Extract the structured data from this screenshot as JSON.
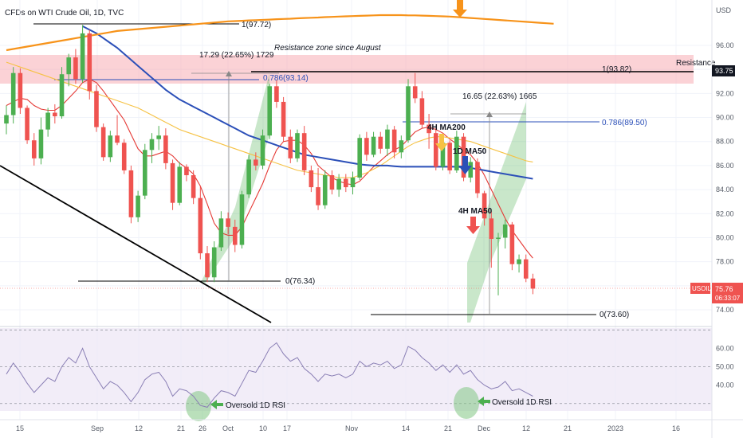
{
  "header": {
    "title": "CFDs on WTI Crude Oil, 1D, TVC"
  },
  "price_axis": {
    "unit": "USD",
    "ticks": [
      "96.00",
      "94.00",
      "92.00",
      "90.00",
      "88.00",
      "86.00",
      "84.00",
      "82.00",
      "80.00",
      "78.00",
      "76.00",
      "74.00"
    ]
  },
  "rsi_axis": {
    "ticks": [
      "60.00",
      "50.00",
      "40.00"
    ]
  },
  "time_axis": {
    "ticks": [
      "15",
      "Sep",
      "12",
      "21",
      "26",
      "Oct",
      "10",
      "17",
      "Nov",
      "14",
      "21",
      "Dec",
      "12",
      "21",
      "2023",
      "16"
    ]
  },
  "badges": {
    "resistance_price": "93.75",
    "symbol": "USOIL",
    "last_price": "75.76",
    "countdown": "06:33:07"
  },
  "colors": {
    "up": "#4caf50",
    "down": "#ef5350",
    "ma_fast": "#e53935",
    "ma_mid": "#f6c244",
    "ma_slow": "#2b4fb8",
    "ma_long": "#f7931a",
    "rsi": "#8a7fb5"
  },
  "chart_data": {
    "type": "candlestick",
    "symbol": "USOIL",
    "timeframe": "1D",
    "ylim": [
      73.0,
      98.5
    ],
    "candles": [
      {
        "o": 89.5,
        "h": 91.0,
        "l": 88.6,
        "c": 90.2
      },
      {
        "o": 90.2,
        "h": 94.2,
        "l": 89.5,
        "c": 93.7
      },
      {
        "o": 93.7,
        "h": 94.1,
        "l": 90.3,
        "c": 90.8
      },
      {
        "o": 90.8,
        "h": 91.0,
        "l": 87.8,
        "c": 88.1
      },
      {
        "o": 88.1,
        "h": 88.7,
        "l": 86.0,
        "c": 86.6
      },
      {
        "o": 86.6,
        "h": 90.0,
        "l": 86.1,
        "c": 89.0
      },
      {
        "o": 89.0,
        "h": 90.8,
        "l": 88.4,
        "c": 90.4
      },
      {
        "o": 90.4,
        "h": 91.1,
        "l": 89.5,
        "c": 90.1
      },
      {
        "o": 90.1,
        "h": 94.2,
        "l": 89.9,
        "c": 93.6
      },
      {
        "o": 93.6,
        "h": 95.3,
        "l": 92.6,
        "c": 95.0
      },
      {
        "o": 95.0,
        "h": 95.7,
        "l": 92.8,
        "c": 93.2
      },
      {
        "o": 93.2,
        "h": 97.7,
        "l": 92.9,
        "c": 97.0
      },
      {
        "o": 97.0,
        "h": 97.3,
        "l": 91.5,
        "c": 92.2
      },
      {
        "o": 92.2,
        "h": 92.7,
        "l": 88.8,
        "c": 89.2
      },
      {
        "o": 89.2,
        "h": 89.5,
        "l": 86.4,
        "c": 86.7
      },
      {
        "o": 86.7,
        "h": 88.9,
        "l": 86.3,
        "c": 88.5
      },
      {
        "o": 88.5,
        "h": 90.2,
        "l": 87.7,
        "c": 87.9
      },
      {
        "o": 87.9,
        "h": 88.2,
        "l": 85.3,
        "c": 85.6
      },
      {
        "o": 85.6,
        "h": 86.0,
        "l": 81.2,
        "c": 81.7
      },
      {
        "o": 81.7,
        "h": 83.9,
        "l": 81.3,
        "c": 83.5
      },
      {
        "o": 83.5,
        "h": 87.8,
        "l": 83.2,
        "c": 87.3
      },
      {
        "o": 87.3,
        "h": 88.7,
        "l": 86.2,
        "c": 88.2
      },
      {
        "o": 88.2,
        "h": 89.3,
        "l": 87.3,
        "c": 88.5
      },
      {
        "o": 88.5,
        "h": 89.1,
        "l": 85.7,
        "c": 86.2
      },
      {
        "o": 86.2,
        "h": 86.5,
        "l": 82.3,
        "c": 82.9
      },
      {
        "o": 82.9,
        "h": 86.3,
        "l": 82.7,
        "c": 85.9
      },
      {
        "o": 85.9,
        "h": 86.1,
        "l": 84.7,
        "c": 85.2
      },
      {
        "o": 85.2,
        "h": 85.6,
        "l": 82.8,
        "c": 83.3
      },
      {
        "o": 83.3,
        "h": 84.3,
        "l": 78.2,
        "c": 78.7
      },
      {
        "o": 78.7,
        "h": 79.3,
        "l": 76.3,
        "c": 76.7
      },
      {
        "o": 76.7,
        "h": 79.7,
        "l": 76.3,
        "c": 79.2
      },
      {
        "o": 79.2,
        "h": 82.2,
        "l": 78.9,
        "c": 81.6
      },
      {
        "o": 81.6,
        "h": 82.1,
        "l": 80.3,
        "c": 80.9
      },
      {
        "o": 80.9,
        "h": 81.5,
        "l": 78.8,
        "c": 79.4
      },
      {
        "o": 79.4,
        "h": 83.9,
        "l": 79.1,
        "c": 83.6
      },
      {
        "o": 83.6,
        "h": 86.9,
        "l": 83.3,
        "c": 86.5
      },
      {
        "o": 86.5,
        "h": 87.1,
        "l": 85.6,
        "c": 86.0
      },
      {
        "o": 86.0,
        "h": 89.0,
        "l": 85.7,
        "c": 88.5
      },
      {
        "o": 88.5,
        "h": 92.8,
        "l": 88.2,
        "c": 92.6
      },
      {
        "o": 92.6,
        "h": 93.1,
        "l": 90.8,
        "c": 91.3
      },
      {
        "o": 91.3,
        "h": 91.7,
        "l": 88.0,
        "c": 88.4
      },
      {
        "o": 88.4,
        "h": 89.0,
        "l": 86.2,
        "c": 86.6
      },
      {
        "o": 86.6,
        "h": 89.0,
        "l": 86.3,
        "c": 88.7
      },
      {
        "o": 88.7,
        "h": 89.3,
        "l": 85.2,
        "c": 85.6
      },
      {
        "o": 85.6,
        "h": 86.0,
        "l": 83.8,
        "c": 84.2
      },
      {
        "o": 84.2,
        "h": 85.8,
        "l": 82.3,
        "c": 82.7
      },
      {
        "o": 82.7,
        "h": 85.6,
        "l": 82.4,
        "c": 85.2
      },
      {
        "o": 85.2,
        "h": 85.6,
        "l": 83.6,
        "c": 84.0
      },
      {
        "o": 84.0,
        "h": 85.3,
        "l": 83.4,
        "c": 84.9
      },
      {
        "o": 84.9,
        "h": 85.3,
        "l": 83.8,
        "c": 84.2
      },
      {
        "o": 84.2,
        "h": 85.5,
        "l": 83.6,
        "c": 85.0
      },
      {
        "o": 85.0,
        "h": 88.6,
        "l": 84.8,
        "c": 88.3
      },
      {
        "o": 88.3,
        "h": 88.8,
        "l": 86.4,
        "c": 86.9
      },
      {
        "o": 86.9,
        "h": 88.8,
        "l": 86.7,
        "c": 88.4
      },
      {
        "o": 88.4,
        "h": 88.8,
        "l": 87.0,
        "c": 87.4
      },
      {
        "o": 87.4,
        "h": 89.4,
        "l": 86.8,
        "c": 89.0
      },
      {
        "o": 89.0,
        "h": 89.3,
        "l": 86.6,
        "c": 87.1
      },
      {
        "o": 87.1,
        "h": 88.5,
        "l": 86.6,
        "c": 88.1
      },
      {
        "o": 88.1,
        "h": 93.2,
        "l": 87.9,
        "c": 92.6
      },
      {
        "o": 92.6,
        "h": 93.7,
        "l": 91.2,
        "c": 91.6
      },
      {
        "o": 91.6,
        "h": 92.2,
        "l": 89.1,
        "c": 89.4
      },
      {
        "o": 89.4,
        "h": 90.3,
        "l": 87.4,
        "c": 88.7
      },
      {
        "o": 88.7,
        "h": 89.1,
        "l": 85.6,
        "c": 85.9
      },
      {
        "o": 85.9,
        "h": 88.3,
        "l": 85.6,
        "c": 87.9
      },
      {
        "o": 87.9,
        "h": 88.1,
        "l": 85.3,
        "c": 85.6
      },
      {
        "o": 85.6,
        "h": 88.9,
        "l": 85.4,
        "c": 88.4
      },
      {
        "o": 88.4,
        "h": 88.7,
        "l": 84.7,
        "c": 85.0
      },
      {
        "o": 85.0,
        "h": 86.7,
        "l": 84.6,
        "c": 86.3
      },
      {
        "o": 86.3,
        "h": 86.6,
        "l": 83.3,
        "c": 83.7
      },
      {
        "o": 83.7,
        "h": 83.9,
        "l": 81.0,
        "c": 81.6
      },
      {
        "o": 81.6,
        "h": 82.2,
        "l": 77.5,
        "c": 79.9
      },
      {
        "o": 79.9,
        "h": 80.4,
        "l": 75.2,
        "c": 80.0
      },
      {
        "o": 80.0,
        "h": 81.5,
        "l": 79.1,
        "c": 81.1
      },
      {
        "o": 81.1,
        "h": 81.3,
        "l": 77.3,
        "c": 77.8
      },
      {
        "o": 77.8,
        "h": 78.6,
        "l": 77.1,
        "c": 78.2
      },
      {
        "o": 78.2,
        "h": 78.6,
        "l": 76.3,
        "c": 76.6
      },
      {
        "o": 76.6,
        "h": 77.0,
        "l": 75.3,
        "c": 75.76
      }
    ],
    "moving_averages": [
      {
        "name": "4H MA50",
        "color": "#e53935",
        "values": [
          91.0,
          91.3,
          91.6,
          91.5,
          91.0,
          90.7,
          90.6,
          90.6,
          91.0,
          91.6,
          92.2,
          92.9,
          93.2,
          92.9,
          92.2,
          91.4,
          90.6,
          89.8,
          88.6,
          87.4,
          86.8,
          86.8,
          87.0,
          87.2,
          86.8,
          86.2,
          85.8,
          85.3,
          84.3,
          82.8,
          81.2,
          80.4,
          80.2,
          80.2,
          80.9,
          82.1,
          83.3,
          84.5,
          86.0,
          87.3,
          88.0,
          88.1,
          88.1,
          87.7,
          87.0,
          86.0,
          85.5,
          85.0,
          84.7,
          84.5,
          84.4,
          84.7,
          85.3,
          85.9,
          86.4,
          86.9,
          87.3,
          87.6,
          88.2,
          88.8,
          89.1,
          89.2,
          89.0,
          88.7,
          88.2,
          87.8,
          87.3,
          86.9,
          86.2,
          85.2,
          84.0,
          82.8,
          81.6,
          80.6,
          79.8,
          79.0,
          78.3
        ]
      },
      {
        "name": "4H MA200",
        "color": "#f6c244",
        "values": [
          94.6,
          94.4,
          94.2,
          94.0,
          93.8,
          93.6,
          93.4,
          93.2,
          93.0,
          92.8,
          92.6,
          92.4,
          92.2,
          92.0,
          91.8,
          91.6,
          91.4,
          91.2,
          91.0,
          90.8,
          90.5,
          90.2,
          89.9,
          89.6,
          89.3,
          89.0,
          88.8,
          88.6,
          88.4,
          88.2,
          88.0,
          87.8,
          87.6,
          87.4,
          87.2,
          87.0,
          86.8,
          86.6,
          86.4,
          86.2,
          86.0,
          85.8,
          85.6,
          85.5,
          85.4,
          85.3,
          85.2,
          85.1,
          85.0,
          85.0,
          85.0,
          85.2,
          85.4,
          85.7,
          86.0,
          86.4,
          86.8,
          87.2,
          87.6,
          87.9,
          88.1,
          88.3,
          88.4,
          88.4,
          88.3,
          88.2,
          88.1,
          88.0,
          87.8,
          87.6,
          87.4,
          87.2,
          87.0,
          86.8,
          86.6,
          86.4,
          86.3
        ]
      },
      {
        "name": "1D MA50",
        "color": "#2b4fb8",
        "values": [
          null,
          null,
          null,
          null,
          null,
          null,
          null,
          null,
          null,
          null,
          null,
          97.6,
          97.3,
          97.0,
          96.6,
          96.2,
          95.8,
          95.3,
          94.8,
          94.3,
          93.8,
          93.3,
          92.8,
          92.3,
          91.9,
          91.5,
          91.2,
          90.9,
          90.6,
          90.3,
          90.0,
          89.7,
          89.4,
          89.1,
          88.8,
          88.5,
          88.3,
          88.1,
          87.9,
          87.7,
          87.5,
          87.3,
          87.1,
          86.9,
          86.8,
          86.7,
          86.6,
          86.5,
          86.4,
          86.3,
          86.2,
          86.1,
          86.05,
          86.0,
          86.0,
          86.0,
          85.95,
          85.9,
          85.9,
          85.9,
          85.9,
          85.9,
          85.9,
          85.9,
          85.9,
          85.9,
          85.85,
          85.8,
          85.7,
          85.6,
          85.5,
          85.4,
          85.3,
          85.2,
          85.1,
          85.0,
          84.9
        ]
      },
      {
        "name": "MA long",
        "color": "#f7931a",
        "values": [
          95.6,
          95.7,
          95.8,
          95.9,
          96.0,
          96.1,
          96.2,
          96.3,
          96.4,
          96.5,
          96.6,
          96.7,
          96.8,
          96.9,
          97.0,
          97.1,
          97.2,
          97.25,
          97.3,
          97.35,
          97.4,
          97.45,
          97.5,
          97.55,
          97.6,
          97.65,
          97.7,
          97.75,
          97.8,
          97.85,
          97.9,
          97.95,
          98.0,
          98.02,
          98.05,
          98.08,
          98.1,
          98.12,
          98.15,
          98.18,
          98.2,
          98.22,
          98.25,
          98.28,
          98.3,
          98.32,
          98.35,
          98.37,
          98.4,
          98.42,
          98.44,
          98.46,
          98.48,
          98.5,
          98.52,
          98.52,
          98.52,
          98.52,
          98.5,
          98.5,
          98.48,
          98.46,
          98.44,
          98.42,
          98.4,
          98.36,
          98.32,
          98.28,
          98.24,
          98.2,
          98.16,
          98.12,
          98.08,
          98.04,
          98.0,
          97.96,
          97.92,
          97.88,
          97.84,
          97.8
        ]
      }
    ],
    "rsi": {
      "name": "1D RSI",
      "levels": [
        70,
        50,
        30
      ],
      "ylim": [
        26,
        71
      ],
      "values": [
        46,
        52,
        47,
        41,
        36,
        40,
        44,
        42,
        50,
        55,
        52,
        60,
        50,
        44,
        38,
        42,
        40,
        36,
        31,
        36,
        43,
        46,
        47,
        42,
        34,
        38,
        37,
        34,
        29,
        28,
        33,
        37,
        36,
        34,
        41,
        48,
        47,
        53,
        60,
        63,
        57,
        53,
        55,
        49,
        46,
        42,
        46,
        45,
        46,
        44,
        46,
        53,
        50,
        52,
        51,
        53,
        49,
        51,
        61,
        59,
        55,
        52,
        48,
        51,
        47,
        51,
        46,
        48,
        43,
        40,
        38,
        39,
        42,
        37,
        38,
        36,
        34
      ]
    },
    "levels": [
      {
        "label": "1(97.72)",
        "price": 97.72
      },
      {
        "label": "1(93.82)",
        "price": 93.82
      },
      {
        "label": "0.786(93.14)",
        "price": 93.14
      },
      {
        "label": "0.786(89.50)",
        "price": 89.5
      },
      {
        "label": "0(76.34)",
        "price": 76.34
      },
      {
        "label": "0(73.60)",
        "price": 73.6
      }
    ],
    "annotations": [
      {
        "text": "Resistance zone since August"
      },
      {
        "text": "Resistance"
      },
      {
        "text": "17.29 (22.65%) 1729"
      },
      {
        "text": "16.65 (22.63%) 1665"
      },
      {
        "text": "4H MA200"
      },
      {
        "text": "1D MA50"
      },
      {
        "text": "4H MA50"
      },
      {
        "text": "Oversold 1D RSI"
      },
      {
        "text": "Oversold 1D RSI"
      }
    ]
  }
}
